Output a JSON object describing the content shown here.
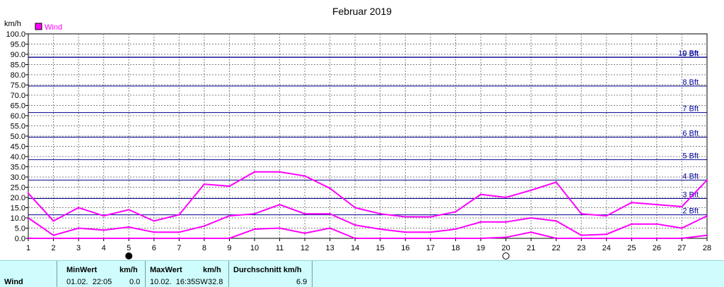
{
  "chart_data": {
    "type": "line",
    "title": "Februar 2019",
    "ylabel": "km/h",
    "legend": {
      "label": "Wind",
      "placement": "top-left",
      "color": "#ff00ff"
    },
    "x": [
      1,
      2,
      3,
      4,
      5,
      6,
      7,
      8,
      9,
      10,
      11,
      12,
      13,
      14,
      15,
      16,
      17,
      18,
      19,
      20,
      21,
      22,
      23,
      24,
      25,
      26,
      27,
      28
    ],
    "xlim": [
      1,
      28
    ],
    "ylim": [
      0,
      100
    ],
    "y_ticks": [
      "0.0",
      "5.0",
      "10.0",
      "15.0",
      "20.0",
      "25.0",
      "30.0",
      "35.0",
      "40.0",
      "45.0",
      "50.0",
      "55.0",
      "60.0",
      "65.0",
      "70.0",
      "75.0",
      "80.0",
      "85.0",
      "90.0",
      "95.0",
      "100.0"
    ],
    "grid": true,
    "series": [
      {
        "role": "max",
        "color": "#ff00ff",
        "values": [
          22.0,
          8.5,
          15.0,
          11.0,
          14.0,
          8.5,
          11.5,
          26.5,
          25.5,
          32.5,
          32.5,
          30.5,
          24.5,
          15.0,
          12.0,
          10.5,
          10.5,
          13.0,
          21.5,
          20.0,
          23.5,
          27.5,
          12.0,
          11.0,
          17.5,
          16.5,
          15.5,
          28.5
        ]
      },
      {
        "role": "average",
        "color": "#ff00ff",
        "values": [
          10.0,
          1.5,
          5.0,
          4.0,
          5.5,
          3.0,
          3.0,
          6.0,
          11.0,
          12.0,
          16.5,
          12.0,
          12.0,
          6.5,
          4.5,
          3.0,
          3.0,
          4.5,
          8.0,
          8.0,
          10.0,
          8.5,
          1.5,
          2.0,
          7.0,
          7.0,
          5.0,
          11.0
        ]
      },
      {
        "role": "min",
        "color": "#ff00ff",
        "values": [
          0.0,
          0.0,
          0.0,
          0.0,
          0.0,
          0.0,
          0.0,
          0.0,
          0.0,
          4.5,
          5.0,
          2.5,
          5.0,
          0.0,
          0.0,
          0.0,
          0.0,
          0.0,
          0.0,
          0.5,
          3.0,
          0.0,
          0.0,
          0.0,
          0.0,
          0.0,
          0.0,
          1.5
        ]
      }
    ],
    "beaufort_lines": [
      {
        "label": "2 Bft",
        "value": 11.5
      },
      {
        "label": "3 Bft",
        "value": 19.5
      },
      {
        "label": "4 Bft",
        "value": 28.5
      },
      {
        "label": "5 Bft",
        "value": 38.5
      },
      {
        "label": "6 Bft",
        "value": 49.5
      },
      {
        "label": "7 Bft",
        "value": 61.5
      },
      {
        "label": "8 Bft",
        "value": 74.5
      },
      {
        "label": "9 Bft",
        "value": 88.5
      },
      {
        "label": "10 Bft",
        "value": 102.5
      }
    ],
    "moon_phases": [
      {
        "day": 5,
        "phase": "new-moon"
      },
      {
        "day": 20,
        "phase": "full-moon"
      }
    ]
  },
  "stats": {
    "series_name": "Wind",
    "min": {
      "header": "MinWert",
      "unit": "km/h",
      "datetime": "01.02.  22:05",
      "value": "0.0"
    },
    "max": {
      "header": "MaxWert",
      "unit": "km/h",
      "datetime": "10.02.  16:35",
      "direction": "SW",
      "value": "32.8"
    },
    "avg": {
      "header": "Durchschnitt km/h",
      "value": "6.9"
    }
  }
}
